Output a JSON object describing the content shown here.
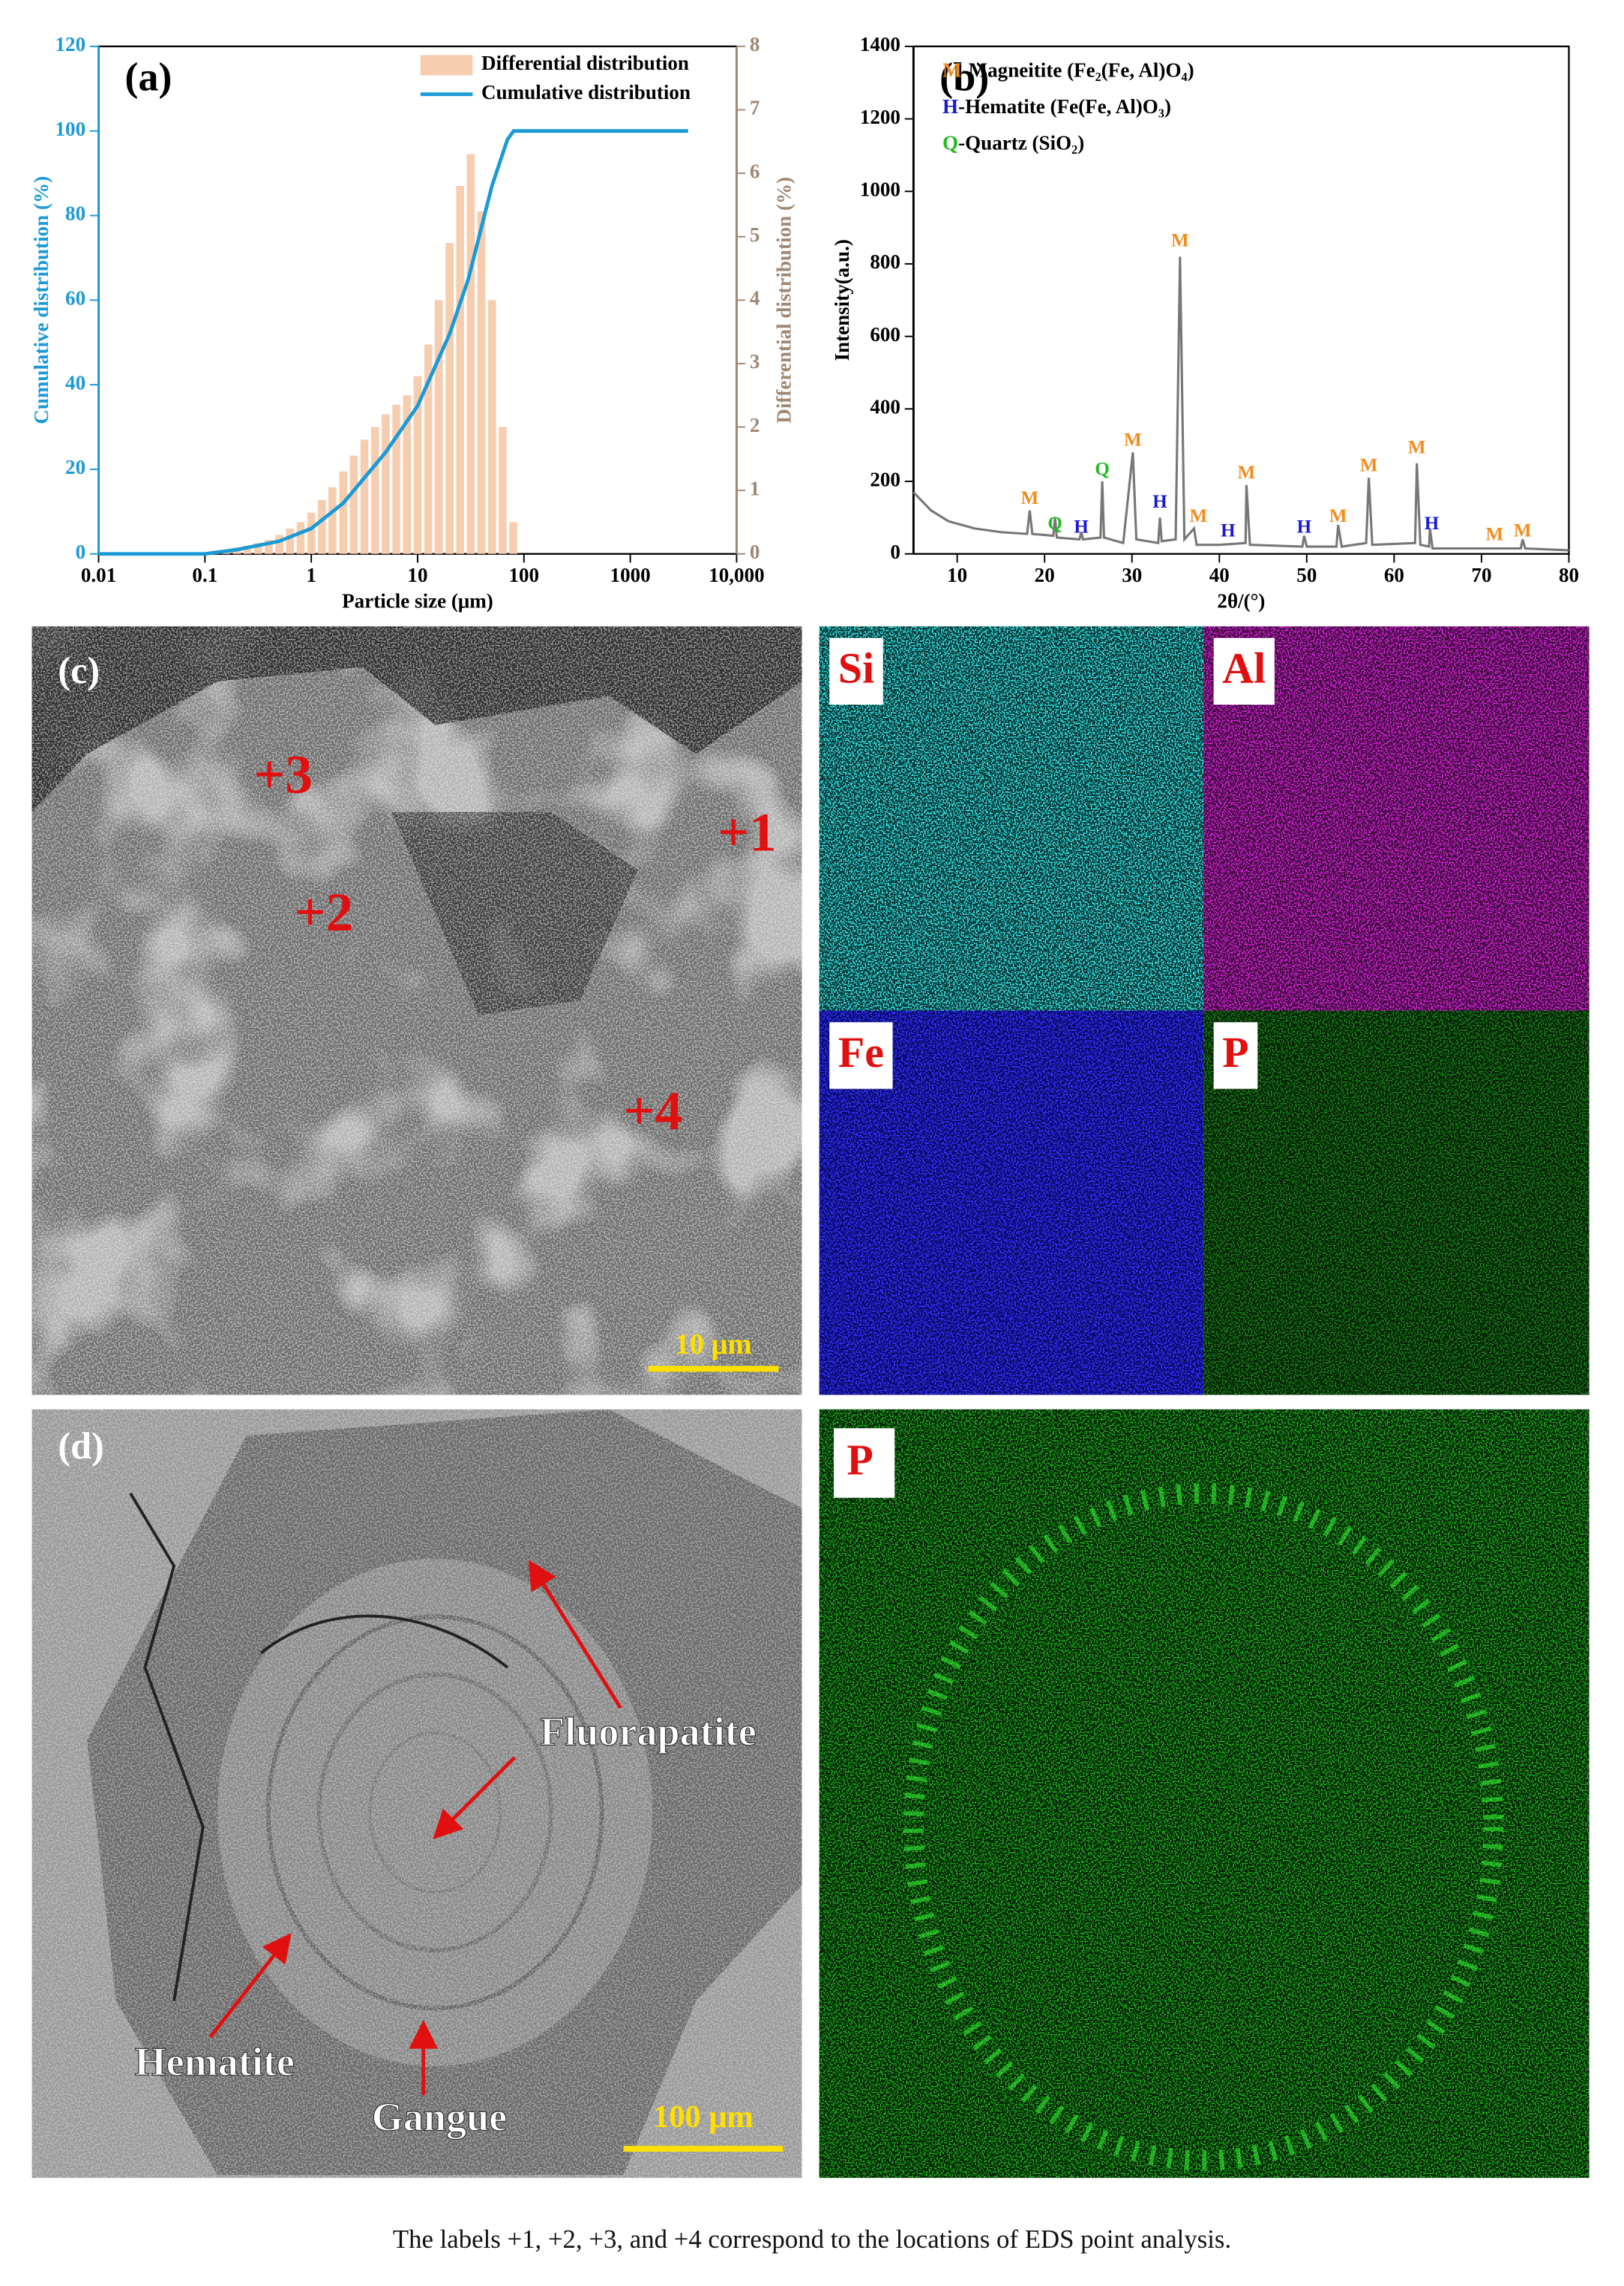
{
  "chart_data": [
    {
      "type": "combo",
      "title": "(a)",
      "x_label": "Particle size (μm)",
      "y_label": "Cumulative distribution (%)",
      "y2_label": "Differential distribution (%)",
      "xscale": "log",
      "xlim": [
        0.01,
        10000
      ],
      "xticks": [
        0.01,
        0.1,
        1,
        10,
        100,
        1000,
        {
          "value": 10000,
          "label": "10,000"
        }
      ],
      "ylim": [
        0,
        120
      ],
      "yticks": [
        0,
        20,
        40,
        60,
        80,
        100,
        120
      ],
      "y2lim": [
        0,
        8
      ],
      "y2ticks": [
        0,
        1,
        2,
        3,
        4,
        5,
        6,
        7,
        8
      ],
      "y_color": "#1b9ad6",
      "y2_color": "#a08872",
      "legend": "top-right",
      "series": [
        {
          "name": "Differential distribution",
          "type": "bar",
          "axis": "y2",
          "color": "#f7cdb0",
          "x": [
            0.126,
            0.158,
            0.2,
            0.251,
            0.316,
            0.398,
            0.501,
            0.631,
            0.794,
            1,
            1.26,
            1.58,
            2,
            2.51,
            3.16,
            3.98,
            5.01,
            6.31,
            7.94,
            10,
            12.6,
            15.8,
            20,
            25.1,
            31.6,
            39.8,
            50.1,
            63.1,
            79.4
          ],
          "values": [
            0.05,
            0.07,
            0.1,
            0.13,
            0.17,
            0.22,
            0.3,
            0.4,
            0.5,
            0.65,
            0.85,
            1.05,
            1.3,
            1.55,
            1.8,
            2.0,
            2.2,
            2.35,
            2.5,
            2.8,
            3.3,
            4.0,
            4.9,
            5.8,
            6.3,
            5.4,
            4.0,
            2.0,
            0.5
          ]
        },
        {
          "name": "Cumulative distribution",
          "type": "line",
          "axis": "y",
          "color": "#1b9ad6",
          "x": [
            0.01,
            0.1,
            0.2,
            0.5,
            1,
            2,
            5,
            10,
            20,
            30,
            50,
            70,
            80,
            3500
          ],
          "values": [
            0,
            0,
            1,
            3,
            6,
            12,
            24,
            35,
            52,
            65,
            87,
            98,
            100,
            100
          ]
        }
      ]
    },
    {
      "type": "line",
      "title": "(b)",
      "x_label": "2θ/(°)",
      "y_label": "Intensity(a.u.)",
      "xlim": [
        5,
        80
      ],
      "xticks": [
        10,
        20,
        30,
        40,
        50,
        60,
        70,
        80
      ],
      "ylim": [
        0,
        1400
      ],
      "yticks": [
        0,
        200,
        400,
        600,
        800,
        1000,
        1200,
        1400
      ],
      "label_colors": {
        "M": "#f28c1e",
        "H": "#1a1ad6",
        "Q": "#22bb22"
      },
      "legend_entries": [
        {
          "symbol": "M",
          "text": "-Magneitite (Fe₂(Fe, Al)O₄)"
        },
        {
          "symbol": "H",
          "text": "-Hematite (Fe(Fe, Al)O₃)"
        },
        {
          "symbol": "Q",
          "text": "-Quartz (SiO₂)"
        }
      ],
      "series": [
        {
          "color": "#777777",
          "x": [
            5,
            7,
            9,
            12,
            15,
            18,
            18.3,
            18.6,
            21,
            21.2,
            21.4,
            24,
            24.2,
            24.4,
            26.4,
            26.6,
            26.8,
            29,
            30.1,
            30.5,
            33,
            33.2,
            33.4,
            35,
            35.5,
            36,
            37.1,
            37.4,
            40,
            43,
            43.1,
            43.5,
            49.5,
            49.7,
            50,
            53.4,
            53.6,
            54,
            56.8,
            57.1,
            57.5,
            62.4,
            62.6,
            63,
            64,
            64.1,
            64.4,
            70,
            71,
            74.5,
            74.7,
            75,
            80
          ],
          "values": [
            170,
            120,
            90,
            70,
            60,
            55,
            120,
            55,
            50,
            100,
            45,
            40,
            60,
            40,
            45,
            200,
            45,
            30,
            280,
            40,
            30,
            100,
            35,
            40,
            820,
            40,
            70,
            25,
            25,
            30,
            190,
            25,
            20,
            50,
            20,
            20,
            80,
            20,
            30,
            210,
            25,
            30,
            250,
            25,
            20,
            70,
            15,
            15,
            15,
            15,
            40,
            15,
            10
          ]
        }
      ],
      "annotations": [
        {
          "text": "M",
          "x": 18.3,
          "y": 150
        },
        {
          "text": "Q",
          "x": 21.2,
          "y": 80
        },
        {
          "text": "H",
          "x": 24.2,
          "y": 70
        },
        {
          "text": "Q",
          "x": 26.6,
          "y": 230
        },
        {
          "text": "M",
          "x": 30.1,
          "y": 310
        },
        {
          "text": "H",
          "x": 33.2,
          "y": 140
        },
        {
          "text": "M",
          "x": 35.5,
          "y": 860
        },
        {
          "text": "M",
          "x": 37.6,
          "y": 100
        },
        {
          "text": "H",
          "x": 41,
          "y": 60
        },
        {
          "text": "M",
          "x": 43.1,
          "y": 220
        },
        {
          "text": "H",
          "x": 49.7,
          "y": 70
        },
        {
          "text": "M",
          "x": 53.6,
          "y": 100
        },
        {
          "text": "M",
          "x": 57.1,
          "y": 240
        },
        {
          "text": "M",
          "x": 62.6,
          "y": 290
        },
        {
          "text": "H",
          "x": 64.3,
          "y": 80
        },
        {
          "text": "M",
          "x": 71.5,
          "y": 50
        },
        {
          "text": "M",
          "x": 74.7,
          "y": 60
        }
      ]
    }
  ],
  "panel_c": {
    "label": "(c)",
    "points": [
      "+3",
      "+1",
      "+2",
      "+4"
    ],
    "scale_bar": "10 μm"
  },
  "eds_maps": [
    "Si",
    "Al",
    "Fe",
    "P"
  ],
  "panel_d": {
    "label": "(d)",
    "annotations": [
      "Fluorapatite",
      "Hematite",
      "Gangue"
    ],
    "scale_bar": "100 μm"
  },
  "p_map": {
    "label": "P"
  },
  "caption": "The labels +1, +2, +3, and +4 correspond to the locations of EDS point analysis."
}
